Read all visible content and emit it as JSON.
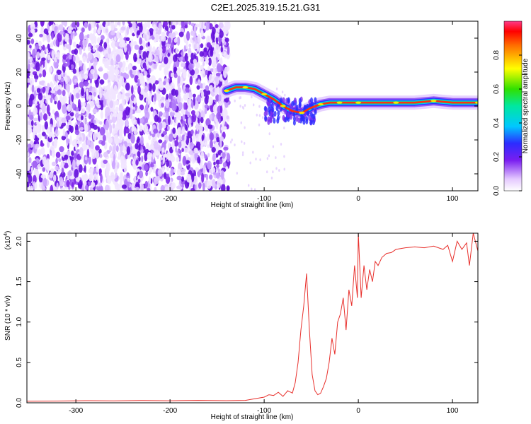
{
  "title": "C2E1.2025.319.15.21.G31",
  "chart_data": [
    {
      "type": "heatmap",
      "xlabel": "Height of straight line (km)",
      "ylabel": "Frequency (Hz)",
      "xlim": [
        -352,
        127
      ],
      "ylim": [
        -50,
        50
      ],
      "x_ticks": [
        -300,
        -200,
        -100,
        0,
        100
      ],
      "x_tick_labels": [
        "-300",
        "-200",
        "-100",
        "0",
        "100"
      ],
      "y_ticks": [
        -40,
        -20,
        0,
        20,
        40
      ],
      "y_tick_labels": [
        "-40",
        "-20",
        "0",
        "20",
        "40"
      ],
      "grid": false,
      "noise_region_xlim": [
        -352,
        -138
      ],
      "ridge": [
        [
          -140,
          9
        ],
        [
          -130,
          11
        ],
        [
          -120,
          11
        ],
        [
          -110,
          10
        ],
        [
          -100,
          7
        ],
        [
          -90,
          4
        ],
        [
          -80,
          0
        ],
        [
          -70,
          -3
        ],
        [
          -60,
          -4
        ],
        [
          -50,
          -1
        ],
        [
          -40,
          1
        ],
        [
          -30,
          2
        ],
        [
          -20,
          2
        ],
        [
          -10,
          2
        ],
        [
          0,
          2
        ],
        [
          20,
          2
        ],
        [
          40,
          2
        ],
        [
          60,
          2
        ],
        [
          80,
          3
        ],
        [
          100,
          2
        ],
        [
          127,
          2
        ]
      ],
      "colorbar": {
        "label": "Normalized spectral amplitude",
        "range": [
          0,
          1
        ],
        "ticks": [
          0.0,
          0.2,
          0.4,
          0.6,
          0.8
        ],
        "tick_labels": [
          "0.0",
          "0.2",
          "0.4",
          "0.6",
          "0.8"
        ]
      }
    },
    {
      "type": "line",
      "xlabel": "Height of straight line (km)",
      "ylabel": "SNR (10 * v/v)",
      "y_multiplier": "(x10",
      "y_multiplier_exp": "4",
      "y_multiplier_close": ")",
      "xlim": [
        -352,
        127
      ],
      "ylim": [
        0,
        21000
      ],
      "x_ticks": [
        -300,
        -200,
        -100,
        0,
        100
      ],
      "x_tick_labels": [
        "-300",
        "-200",
        "-100",
        "0",
        "100"
      ],
      "y_ticks": [
        0,
        5000,
        10000,
        15000,
        20000
      ],
      "y_tick_labels": [
        "0.0",
        "0.5",
        "1.0",
        "1.5",
        "2.0"
      ],
      "grid": false,
      "color": "#e8302c",
      "x": [
        -352,
        -320,
        -290,
        -260,
        -230,
        -200,
        -170,
        -140,
        -120,
        -110,
        -100,
        -95,
        -90,
        -85,
        -80,
        -75,
        -70,
        -67,
        -64,
        -61,
        -58,
        -55,
        -52,
        -49,
        -46,
        -43,
        -40,
        -37,
        -34,
        -31,
        -28,
        -25,
        -22,
        -19,
        -16,
        -13,
        -10,
        -7,
        -4,
        -1,
        0,
        3,
        6,
        9,
        12,
        15,
        18,
        21,
        25,
        30,
        35,
        40,
        50,
        60,
        70,
        80,
        90,
        95,
        100,
        105,
        110,
        115,
        118,
        122,
        127
      ],
      "values": [
        200,
        220,
        260,
        240,
        280,
        250,
        300,
        260,
        300,
        500,
        700,
        1000,
        900,
        1300,
        800,
        1500,
        1200,
        2500,
        5000,
        9000,
        12000,
        16000,
        9000,
        3500,
        1500,
        1000,
        1200,
        2000,
        3000,
        5000,
        8000,
        6000,
        10000,
        11000,
        13000,
        9000,
        14000,
        12000,
        17000,
        13000,
        21000,
        13000,
        17000,
        14000,
        16500,
        15000,
        17500,
        17000,
        18000,
        18500,
        18600,
        19000,
        19200,
        19300,
        19200,
        19400,
        19000,
        19500,
        17500,
        20000,
        19000,
        19800,
        17000,
        21000,
        18800
      ]
    }
  ]
}
